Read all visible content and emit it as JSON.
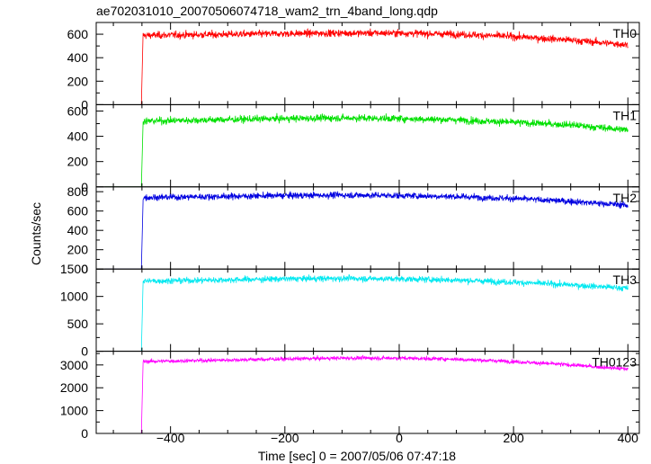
{
  "chart_data": {
    "type": "line",
    "title": "ae702031010_20070506074718_wam2_trn_4band_long.qdp",
    "xlabel": "Time [sec] 0 = 2007/05/06 07:47:18",
    "ylabel": "Counts/sec",
    "xlim": [
      -530,
      420
    ],
    "x_ticks": [
      -400,
      -200,
      0,
      200,
      400
    ],
    "x_tick_labels": [
      "−400",
      "−200",
      "0",
      "200",
      "400"
    ],
    "panels": [
      {
        "name": "TH0",
        "color": "#ff0000",
        "ylim": [
          0,
          700
        ],
        "y_ticks": [
          0,
          200,
          400,
          600
        ],
        "y_tick_labels": [
          "0",
          "200",
          "400",
          "600"
        ],
        "pre_level": 0,
        "onset_x": -448,
        "end_x": 400,
        "profile": {
          "x": [
            -448,
            -200,
            -100,
            0,
            100,
            200,
            300,
            400
          ],
          "y": [
            590,
            605,
            610,
            610,
            600,
            580,
            550,
            510
          ]
        },
        "noise": 60
      },
      {
        "name": "TH1",
        "color": "#00e000",
        "ylim": [
          0,
          650
        ],
        "y_ticks": [
          0,
          200,
          400,
          600
        ],
        "y_tick_labels": [
          "0",
          "200",
          "400",
          "600"
        ],
        "pre_level": 0,
        "onset_x": -448,
        "end_x": 400,
        "profile": {
          "x": [
            -448,
            -200,
            -100,
            0,
            100,
            200,
            300,
            400
          ],
          "y": [
            520,
            540,
            545,
            540,
            530,
            510,
            490,
            450
          ]
        },
        "noise": 55
      },
      {
        "name": "TH2",
        "color": "#0000e0",
        "ylim": [
          0,
          850
        ],
        "y_ticks": [
          0,
          200,
          400,
          600,
          800
        ],
        "y_tick_labels": [
          "0",
          "200",
          "400",
          "600",
          "800"
        ],
        "pre_level": 0,
        "onset_x": -448,
        "end_x": 400,
        "profile": {
          "x": [
            -448,
            -200,
            -100,
            0,
            100,
            200,
            300,
            400
          ],
          "y": [
            740,
            760,
            765,
            760,
            750,
            730,
            700,
            660
          ]
        },
        "noise": 65
      },
      {
        "name": "TH3",
        "color": "#00e8f0",
        "ylim": [
          0,
          1500
        ],
        "y_ticks": [
          0,
          500,
          1000,
          1500
        ],
        "y_tick_labels": [
          "0",
          "500",
          "1000",
          "1500"
        ],
        "pre_level": 0,
        "onset_x": -448,
        "end_x": 400,
        "profile": {
          "x": [
            -448,
            -200,
            -100,
            0,
            100,
            200,
            300,
            400
          ],
          "y": [
            1280,
            1320,
            1330,
            1320,
            1300,
            1260,
            1210,
            1150
          ]
        },
        "noise": 110
      },
      {
        "name": "TH0123",
        "color": "#ff00ff",
        "ylim": [
          0,
          3600
        ],
        "y_ticks": [
          0,
          1000,
          2000,
          3000
        ],
        "y_tick_labels": [
          "0",
          "1000",
          "2000",
          "3000"
        ],
        "pre_level": 0,
        "onset_x": -448,
        "end_x": 400,
        "profile": {
          "x": [
            -448,
            -200,
            -100,
            0,
            100,
            200,
            300,
            400
          ],
          "y": [
            3150,
            3260,
            3300,
            3300,
            3250,
            3150,
            3000,
            2820
          ]
        },
        "noise": 170
      }
    ]
  }
}
